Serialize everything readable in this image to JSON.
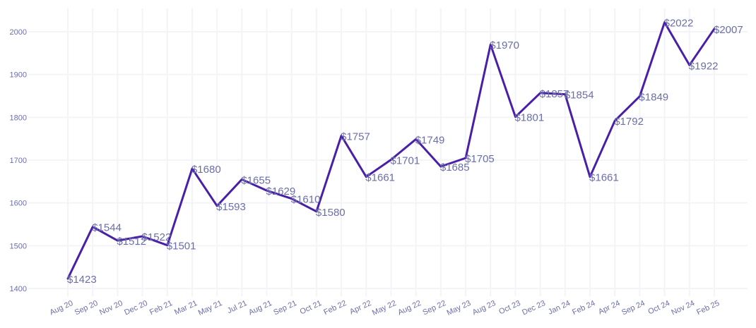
{
  "chart_data": {
    "type": "line",
    "title": "",
    "xlabel": "",
    "ylabel": "",
    "ylim": [
      1400,
      2050
    ],
    "yticks": [
      1400,
      1500,
      1600,
      1700,
      1800,
      1900,
      2000
    ],
    "grid": true,
    "legend": "none",
    "line_color": "#4a1fa8",
    "label_color": "#6b6fa8",
    "categories": [
      "Aug 20",
      "Sep 20",
      "Nov 20",
      "Dec 20",
      "Feb 21",
      "Mar 21",
      "May 21",
      "Jul 21",
      "Aug 21",
      "Sep 21",
      "Oct 21",
      "Feb 22",
      "Apr 22",
      "May 22",
      "Aug 22",
      "Sep 22",
      "May 23",
      "Aug 23",
      "Oct 23",
      "Dec 23",
      "Jan 24",
      "Feb 24",
      "Apr 24",
      "Sep 24",
      "Oct 24",
      "Nov 24",
      "Feb 25"
    ],
    "values": [
      1423,
      1544,
      1512,
      1522,
      1501,
      1680,
      1593,
      1655,
      1629,
      1610,
      1580,
      1757,
      1661,
      1701,
      1749,
      1685,
      1705,
      1970,
      1801,
      1857,
      1854,
      1661,
      1792,
      1849,
      2022,
      1922,
      2007
    ],
    "data_labels": [
      "$1423",
      "$1544",
      "$1512",
      "$1522",
      "$1501",
      "$1680",
      "$1593",
      "$1655",
      "$1629",
      "$1610",
      "$1580",
      "$1757",
      "$1661",
      "$1701",
      "$1749",
      "$1685",
      "$1705",
      "$1970",
      "$1801",
      "$1857",
      "$1854",
      "$1661",
      "$1792",
      "$1849",
      "$2022",
      "$1922",
      "$2007"
    ]
  }
}
